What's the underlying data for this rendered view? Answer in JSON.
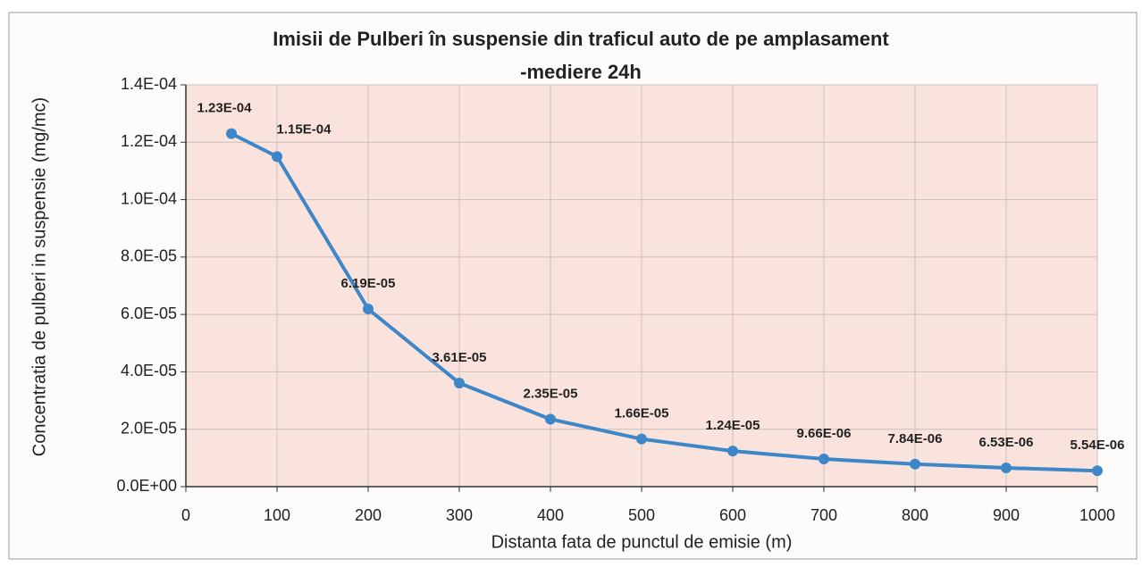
{
  "chart_data": {
    "type": "line",
    "title": [
      "Imisii de Pulberi în suspensie din traficul auto de pe amplasament",
      "-mediere 24h"
    ],
    "x_label": "Distanta fata de punctul de emisie (m)",
    "y_label": "Concentratia de pulberi in suspensie (mg/mc)",
    "x": [
      50,
      100,
      200,
      300,
      400,
      500,
      600,
      700,
      800,
      900,
      1000
    ],
    "values": [
      0.000123,
      0.000115,
      6.19e-05,
      3.61e-05,
      2.35e-05,
      1.66e-05,
      1.24e-05,
      9.66e-06,
      7.84e-06,
      6.53e-06,
      5.54e-06
    ],
    "value_labels": [
      "1.23E-04",
      "1.15E-04",
      "6.19E-05",
      "3.61E-05",
      "2.35E-05",
      "1.66E-05",
      "1.24E-05",
      "9.66E-06",
      "7.84E-06",
      "6.53E-06",
      "5.54E-06"
    ],
    "color": "#3d87c9",
    "xlim": [
      0,
      1000
    ],
    "xticks": [
      0,
      100,
      200,
      300,
      400,
      500,
      600,
      700,
      800,
      900,
      1000
    ],
    "ylim": [
      0,
      0.00014
    ],
    "yticks": [
      {
        "value": 0,
        "label": "0.0E+00"
      },
      {
        "value": 2e-05,
        "label": "2.0E-05"
      },
      {
        "value": 4e-05,
        "label": "4.0E-05"
      },
      {
        "value": 6e-05,
        "label": "6.0E-05"
      },
      {
        "value": 8e-05,
        "label": "8.0E-05"
      },
      {
        "value": 0.0001,
        "label": "1.0E-04"
      },
      {
        "value": 0.00012,
        "label": "1.2E-04"
      },
      {
        "value": 0.00014,
        "label": "1.4E-04"
      }
    ],
    "grid": true
  }
}
